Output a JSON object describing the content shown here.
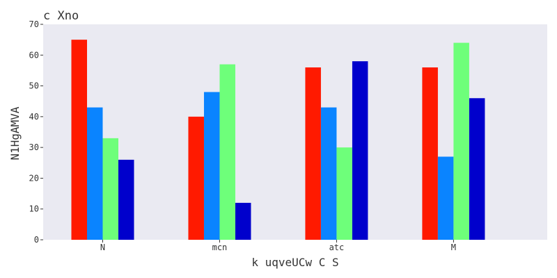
{
  "chart_data": {
    "type": "bar",
    "title": "c Xno",
    "xlabel": "k uqveUCw C S",
    "ylabel": "N1HgAMVA",
    "ylim": [
      0,
      70
    ],
    "yticks": [
      0,
      10,
      20,
      30,
      40,
      50,
      60,
      70
    ],
    "categories": [
      "N",
      "mcn",
      "atc",
      "M"
    ],
    "grid": false,
    "series": [
      {
        "color": "#ff1a00",
        "values": [
          65,
          40,
          56,
          56
        ]
      },
      {
        "color": "#0a84ff",
        "values": [
          43,
          48,
          43,
          27
        ]
      },
      {
        "color": "#6eff7a",
        "values": [
          33,
          57,
          30,
          64
        ]
      },
      {
        "color": "#0000cc",
        "values": [
          26,
          12,
          58,
          46
        ]
      }
    ],
    "background_color": "#eaeaf2"
  }
}
